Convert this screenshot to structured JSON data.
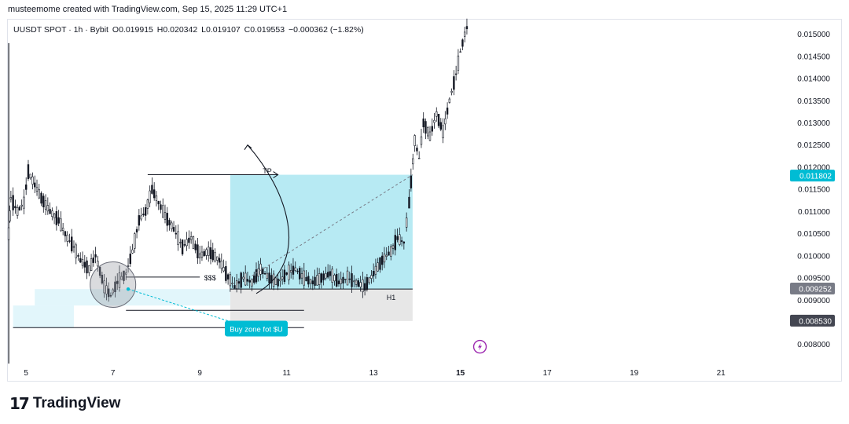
{
  "header": {
    "attribution": "musteemome created with TradingView.com, Sep 15, 2025 11:29 UTC+1"
  },
  "legend": {
    "symbol": "UUSDT SPOT · 1h · Bybit",
    "open": "O0.019915",
    "high": "H0.020342",
    "low": "L0.019107",
    "close": "C0.019553",
    "change": "−0.000362 (−1.82%)"
  },
  "footer": {
    "brand": "TradingView",
    "logo_icon": "tradingview-logo-icon"
  },
  "chart_data": {
    "type": "candlestick",
    "x_tick_labels": [
      "5",
      "7",
      "9",
      "11",
      "13",
      "15",
      "17",
      "19",
      "21"
    ],
    "x_ticks": [
      5,
      7,
      9,
      11,
      13,
      15,
      17,
      19,
      21
    ],
    "highlight_x_tick": "15",
    "y_tick_labels": [
      "0.015000",
      "0.014500",
      "0.014000",
      "0.013500",
      "0.013000",
      "0.012500",
      "0.012000",
      "0.011500",
      "0.011000",
      "0.010500",
      "0.010000",
      "0.009500",
      "0.009000",
      "0.008000"
    ],
    "y_ticks": [
      0.015,
      0.0145,
      0.014,
      0.0135,
      0.013,
      0.0125,
      0.012,
      0.0115,
      0.011,
      0.0105,
      0.01,
      0.0095,
      0.009,
      0.008
    ],
    "ylim": [
      0.00757,
      0.01533
    ],
    "xlim": [
      4.58,
      22.5
    ],
    "price_badges": [
      {
        "label": "0.011802",
        "value": 0.011802,
        "color": "#00bcd4"
      },
      {
        "label": "0.009252",
        "value": 0.009252,
        "color": "#787b86"
      },
      {
        "label": "0.008530",
        "value": 0.00853,
        "color": "#434651"
      }
    ],
    "price_path": [
      [
        4.6,
        0.0105
      ],
      [
        4.65,
        0.0113
      ],
      [
        4.8,
        0.011
      ],
      [
        4.95,
        0.0112
      ],
      [
        5.05,
        0.0119
      ],
      [
        5.2,
        0.0116
      ],
      [
        5.35,
        0.0113
      ],
      [
        5.55,
        0.011
      ],
      [
        5.75,
        0.0108
      ],
      [
        5.95,
        0.0104
      ],
      [
        6.1,
        0.0102
      ],
      [
        6.25,
        0.0099
      ],
      [
        6.45,
        0.0097
      ],
      [
        6.6,
        0.01
      ],
      [
        6.8,
        0.0093
      ],
      [
        6.95,
        0.0091
      ],
      [
        7.1,
        0.0094
      ],
      [
        7.3,
        0.0096
      ],
      [
        7.45,
        0.0101
      ],
      [
        7.6,
        0.0108
      ],
      [
        7.75,
        0.011
      ],
      [
        7.9,
        0.0115
      ],
      [
        8.05,
        0.0112
      ],
      [
        8.2,
        0.0109
      ],
      [
        8.4,
        0.0106
      ],
      [
        8.6,
        0.0102
      ],
      [
        8.8,
        0.0104
      ],
      [
        9.0,
        0.01
      ],
      [
        9.2,
        0.0101
      ],
      [
        9.45,
        0.0099
      ],
      [
        9.6,
        0.0096
      ],
      [
        9.8,
        0.0093
      ],
      [
        10.0,
        0.0095
      ],
      [
        10.2,
        0.0094
      ],
      [
        10.4,
        0.0097
      ],
      [
        10.6,
        0.0095
      ],
      [
        10.8,
        0.0094
      ],
      [
        11.0,
        0.0096
      ],
      [
        11.2,
        0.0097
      ],
      [
        11.4,
        0.0095
      ],
      [
        11.6,
        0.0094
      ],
      [
        11.8,
        0.0095
      ],
      [
        12.0,
        0.0096
      ],
      [
        12.2,
        0.0094
      ],
      [
        12.4,
        0.0095
      ],
      [
        12.6,
        0.0094
      ],
      [
        12.8,
        0.0093
      ],
      [
        13.0,
        0.0096
      ],
      [
        13.2,
        0.0099
      ],
      [
        13.4,
        0.0101
      ],
      [
        13.55,
        0.0104
      ],
      [
        13.7,
        0.0103
      ],
      [
        13.82,
        0.0112
      ],
      [
        13.95,
        0.0126
      ],
      [
        14.05,
        0.0122
      ],
      [
        14.15,
        0.013
      ],
      [
        14.3,
        0.0127
      ],
      [
        14.45,
        0.0132
      ],
      [
        14.6,
        0.0128
      ],
      [
        14.75,
        0.0135
      ],
      [
        14.9,
        0.0141
      ],
      [
        15.0,
        0.0146
      ],
      [
        15.1,
        0.015
      ],
      [
        15.2,
        0.0153
      ]
    ],
    "annotations": [
      {
        "type": "label",
        "text": "TP",
        "x": 10.45,
        "y": 0.01193
      },
      {
        "type": "label",
        "text": "$$$",
        "x": 9.1,
        "y": 0.00952
      },
      {
        "type": "label",
        "text": "H1",
        "x": 13.3,
        "y": 0.00908
      },
      {
        "type": "callout",
        "text": "Buy zone fot $U",
        "x": 10.3,
        "y": 0.00834,
        "color": "#00bcd4"
      },
      {
        "type": "target-box",
        "x": [
          9.7,
          13.9
        ],
        "y": [
          0.00925,
          0.01183
        ],
        "color": "#b3e9f2"
      },
      {
        "type": "stop-box",
        "x": [
          9.7,
          13.9
        ],
        "y": [
          0.00853,
          0.00925
        ],
        "color": "#e6e6e6"
      },
      {
        "type": "zone",
        "x": [
          5.2,
          9.7
        ],
        "y": [
          0.00888,
          0.00925
        ],
        "color": "#e0f6fb"
      },
      {
        "type": "zone",
        "x": [
          4.7,
          6.1
        ],
        "y": [
          0.00838,
          0.00888
        ],
        "color": "#e0f6fb"
      },
      {
        "type": "circle",
        "x": 7.0,
        "y": 0.00935,
        "color": "#9598a1"
      }
    ],
    "grid": false
  }
}
